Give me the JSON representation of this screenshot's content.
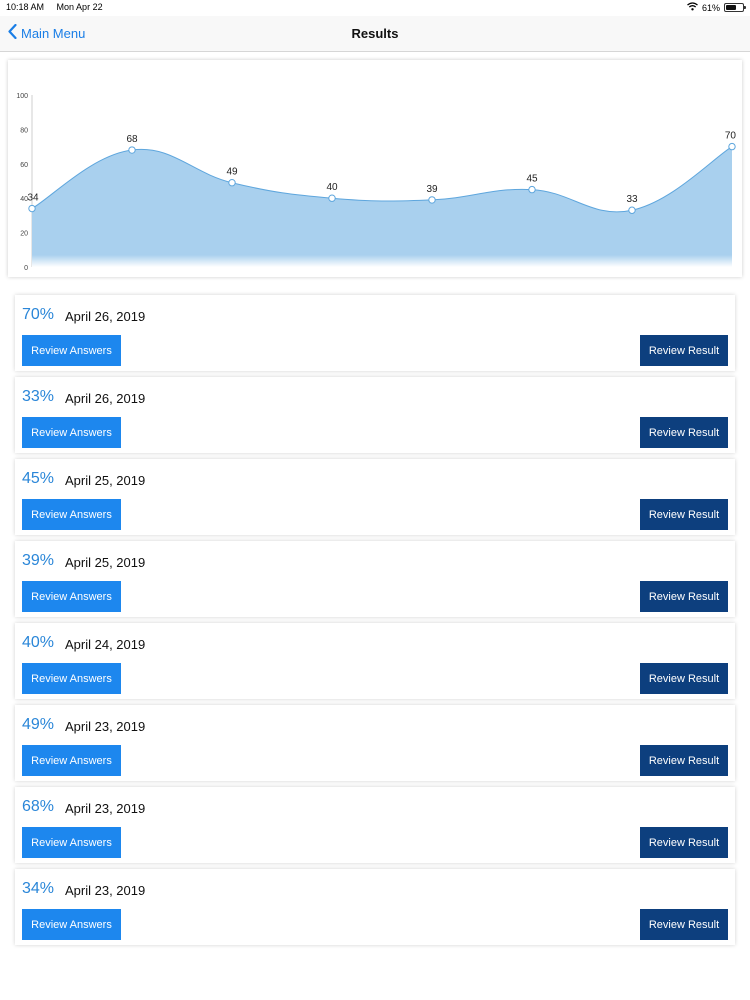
{
  "status_bar": {
    "time": "10:18 AM",
    "date": "Mon Apr 22",
    "battery": "61%",
    "battery_level": 0.61
  },
  "nav": {
    "back_label": "Main Menu",
    "title": "Results"
  },
  "chart_data": {
    "type": "area",
    "x": [
      1,
      2,
      3,
      4,
      5,
      6,
      7,
      8
    ],
    "values": [
      34,
      68,
      49,
      40,
      39,
      45,
      33,
      70
    ],
    "data_labels": [
      "34",
      "68",
      "49",
      "40",
      "39",
      "45",
      "33",
      "70"
    ],
    "y_ticks": [
      "0",
      "20",
      "40",
      "60",
      "80",
      "100"
    ],
    "ylim": [
      0,
      100
    ],
    "title": "",
    "xlabel": "",
    "ylabel": "",
    "grid": false,
    "fill_color": "#a9d0ee",
    "line_color": "#5ea6dd"
  },
  "results": [
    {
      "percent": "70%",
      "date": "April 26, 2019",
      "answers_label": "Review Answers",
      "result_label": "Review Result"
    },
    {
      "percent": "33%",
      "date": "April 26, 2019",
      "answers_label": "Review Answers",
      "result_label": "Review Result"
    },
    {
      "percent": "45%",
      "date": "April 25, 2019",
      "answers_label": "Review Answers",
      "result_label": "Review Result"
    },
    {
      "percent": "39%",
      "date": "April 25, 2019",
      "answers_label": "Review Answers",
      "result_label": "Review Result"
    },
    {
      "percent": "40%",
      "date": "April 24, 2019",
      "answers_label": "Review Answers",
      "result_label": "Review Result"
    },
    {
      "percent": "49%",
      "date": "April 23, 2019",
      "answers_label": "Review Answers",
      "result_label": "Review Result"
    },
    {
      "percent": "68%",
      "date": "April 23, 2019",
      "answers_label": "Review Answers",
      "result_label": "Review Result"
    },
    {
      "percent": "34%",
      "date": "April 23, 2019",
      "answers_label": "Review Answers",
      "result_label": "Review Result"
    }
  ],
  "colors": {
    "accent": "#1a7ee6",
    "answers_button": "#1d87ee",
    "result_button": "#0d3f7e",
    "percent_text": "#2a86d8"
  }
}
